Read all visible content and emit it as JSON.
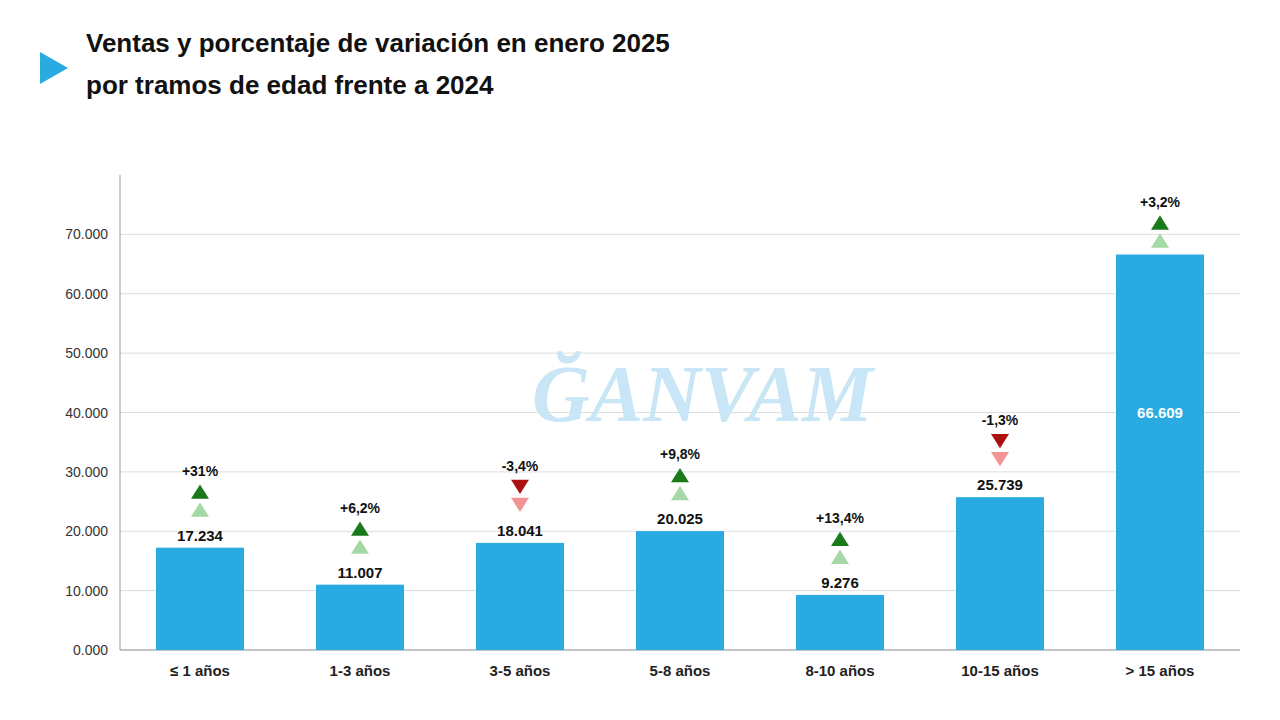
{
  "chart_data": {
    "type": "bar",
    "title": "Ventas y porcentaje de variación en enero 2025",
    "subtitle": "por tramos de edad frente a 2024",
    "annotations": [
      {
        "text": "ĞANVAM"
      }
    ],
    "categories": [
      "≤ 1 años",
      "1-3 años",
      "3-5 años",
      "5-8 años",
      "8-10 años",
      "10-15 años",
      "> 15 años"
    ],
    "values": [
      17234,
      11007,
      18041,
      20025,
      9276,
      25739,
      66609
    ],
    "value_labels": [
      "17.234",
      "11.007",
      "18.041",
      "20.025",
      "9.276",
      "25.739",
      "66.609"
    ],
    "data_labels": true,
    "change": [
      31,
      6.2,
      -3.4,
      9.8,
      13.4,
      -1.3,
      3.2
    ],
    "change_labels": [
      "+31%",
      "+6,2%",
      "-3,4%",
      "+9,8%",
      "+13,4%",
      "-1,3%",
      "+3,2%"
    ],
    "color": "#29ABE2",
    "ylim": [
      0,
      80000
    ],
    "yticks": [
      {
        "value": 0,
        "label": "0.000"
      },
      {
        "value": 10000,
        "label": "10.000"
      },
      {
        "value": 20000,
        "label": "20.000"
      },
      {
        "value": 30000,
        "label": "30.000"
      },
      {
        "value": 40000,
        "label": "40.000"
      },
      {
        "value": 50000,
        "label": "50.000"
      },
      {
        "value": 60000,
        "label": "60.000"
      },
      {
        "value": 70000,
        "label": "70.000"
      }
    ],
    "grid": true
  }
}
